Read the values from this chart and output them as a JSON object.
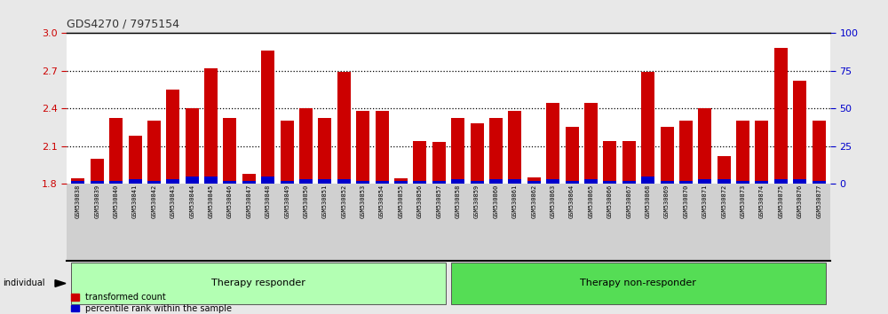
{
  "title": "GDS4270 / 7975154",
  "samples": [
    "GSM530838",
    "GSM530839",
    "GSM530840",
    "GSM530841",
    "GSM530842",
    "GSM530843",
    "GSM530844",
    "GSM530845",
    "GSM530846",
    "GSM530847",
    "GSM530848",
    "GSM530849",
    "GSM530850",
    "GSM530851",
    "GSM530852",
    "GSM530853",
    "GSM530854",
    "GSM530855",
    "GSM530856",
    "GSM530857",
    "GSM530858",
    "GSM530859",
    "GSM530860",
    "GSM530861",
    "GSM530862",
    "GSM530863",
    "GSM530864",
    "GSM530865",
    "GSM530866",
    "GSM530867",
    "GSM530868",
    "GSM530869",
    "GSM530870",
    "GSM530871",
    "GSM530872",
    "GSM530873",
    "GSM530874",
    "GSM530875",
    "GSM530876",
    "GSM530877"
  ],
  "transformed_count": [
    1.84,
    2.0,
    2.32,
    2.18,
    2.3,
    2.55,
    2.4,
    2.72,
    2.32,
    1.88,
    2.86,
    2.3,
    2.4,
    2.32,
    2.69,
    2.38,
    2.38,
    1.84,
    2.14,
    2.13,
    2.32,
    2.28,
    2.32,
    2.38,
    1.85,
    2.44,
    2.25,
    2.44,
    2.14,
    2.14,
    2.69,
    2.25,
    2.3,
    2.4,
    2.02,
    2.3,
    2.3,
    2.88,
    2.62,
    2.3
  ],
  "percentile_rank": [
    2,
    2,
    2,
    3,
    2,
    3,
    5,
    5,
    2,
    2,
    5,
    2,
    3,
    3,
    3,
    2,
    2,
    2,
    2,
    2,
    3,
    2,
    3,
    3,
    2,
    3,
    2,
    3,
    2,
    2,
    5,
    2,
    2,
    3,
    3,
    2,
    2,
    3,
    3,
    2
  ],
  "responder_count": 20,
  "total_count": 40,
  "group_labels": [
    "Therapy responder",
    "Therapy non-responder"
  ],
  "bar_color_red": "#cc0000",
  "bar_color_blue": "#0000cc",
  "ylim_left": [
    1.8,
    3.0
  ],
  "ylim_right": [
    0,
    100
  ],
  "yticks_left": [
    1.8,
    2.1,
    2.4,
    2.7,
    3.0
  ],
  "yticks_right": [
    0,
    25,
    50,
    75,
    100
  ],
  "left_axis_color": "#cc0000",
  "right_axis_color": "#0000cc",
  "fig_bg": "#e8e8e8",
  "plot_bg": "#ffffff",
  "tick_label_bg": "#d0d0d0",
  "group_box_color_responder": "#b3ffb3",
  "group_box_color_nonresponder": "#55dd55",
  "group_box_outline": "#888888"
}
